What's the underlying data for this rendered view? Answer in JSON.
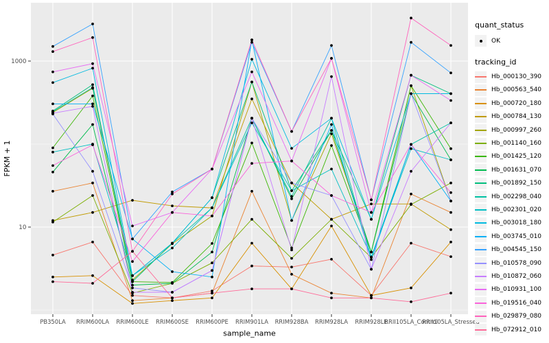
{
  "figure": {
    "background": "#FFFFFF",
    "panel_background": "#EBEBEB",
    "gridline_color": "#FFFFFF",
    "tick_color": "#333333",
    "tick_label_color": "#4D4D4D",
    "text_color": "#000000",
    "point_color": "#000000"
  },
  "legend": {
    "quant_status": {
      "title": "quant_status",
      "items": [
        {
          "label": "OK",
          "marker": "point"
        }
      ]
    },
    "tracking_id": {
      "title": "tracking_id"
    }
  },
  "chart_data": {
    "type": "line",
    "title": "",
    "xlabel": "sample_name",
    "ylabel": "FPKM + 1",
    "y_scale": "log10",
    "y_ticks": [
      10,
      1000
    ],
    "y_tick_labels": [
      "10",
      "1000"
    ],
    "y_minor_gridlines": [
      1,
      100
    ],
    "ylim": [
      0.95,
      4500
    ],
    "grid": true,
    "legend_position": "right",
    "categories": [
      "PB350LA",
      "RRIM600LA",
      "RRIM600LE",
      "RRIM600SE",
      "RRIM600PE",
      "RRIM901LA",
      "RRIM928BA",
      "RRIM928LA",
      "RRIM928LE",
      "RRII105LA_Control",
      "RRII105LA_Stressed"
    ],
    "series": [
      {
        "name": "Hb_000130_390",
        "color": "#F8766D",
        "values": [
          4.6,
          6.6,
          1.5,
          1.4,
          1.7,
          3.4,
          3.3,
          4.1,
          1.5,
          6.4,
          4.4
        ]
      },
      {
        "name": "Hb_000563_540",
        "color": "#EA8331",
        "values": [
          27,
          34,
          1.3,
          1.4,
          1.6,
          27,
          2.7,
          1.6,
          1.4,
          25,
          15
        ]
      },
      {
        "name": "Hb_000720_180",
        "color": "#D89000",
        "values": [
          2.5,
          2.6,
          1.2,
          1.3,
          1.4,
          6.4,
          1.8,
          10.3,
          1.5,
          1.85,
          6.6
        ]
      },
      {
        "name": "Hb_000784_130",
        "color": "#C09B00",
        "values": [
          12,
          15,
          21,
          18,
          17,
          350,
          34,
          12.4,
          19,
          19,
          9.3
        ]
      },
      {
        "name": "Hb_000997_260",
        "color": "#A3A500",
        "values": [
          240,
          470,
          2.3,
          6.3,
          13.6,
          560,
          12,
          133,
          5.0,
          505,
          20.6
        ]
      },
      {
        "name": "Hb_001140_160",
        "color": "#7CAE00",
        "values": [
          11.5,
          24,
          1.6,
          2.1,
          3.7,
          12.4,
          4.2,
          12.4,
          4.3,
          18.7,
          34
        ]
      },
      {
        "name": "Hb_001425_120",
        "color": "#39B600",
        "values": [
          90,
          380,
          2.2,
          2.15,
          6.35,
          103,
          5.6,
          96,
          5.0,
          505,
          88
        ]
      },
      {
        "name": "Hb_001631_070",
        "color": "#00BB4E",
        "values": [
          46,
          172,
          2.0,
          2.1,
          5.0,
          205,
          21.9,
          146,
          5.0,
          405,
          64.5
        ]
      },
      {
        "name": "Hb_001892_150",
        "color": "#00BF7D",
        "values": [
          250,
          520,
          2.2,
          6.4,
          22.6,
          560,
          27.4,
          146,
          12.4,
          675,
          405
        ]
      },
      {
        "name": "Hb_002298_040",
        "color": "#00C1A3",
        "values": [
          245,
          480,
          2.6,
          6.4,
          17.1,
          205,
          23.4,
          205,
          4.35,
          99,
          180
        ]
      },
      {
        "name": "Hb_002301_020",
        "color": "#00BFC4",
        "values": [
          80,
          100,
          2.6,
          5.6,
          17.1,
          180,
          27.4,
          50,
          4.35,
          88,
          64.5
        ]
      },
      {
        "name": "Hb_003018_180",
        "color": "#00BAE0",
        "values": [
          550,
          820,
          2.6,
          6.4,
          22.6,
          1050,
          88.7,
          205,
          12.4,
          405,
          405
        ]
      },
      {
        "name": "Hb_003745_010",
        "color": "#00B0F6",
        "values": [
          305,
          305,
          7.2,
          2.9,
          2.5,
          1800,
          12,
          172,
          4.05,
          99,
          20.6
        ]
      },
      {
        "name": "Hb_004545_150",
        "color": "#35A2FF",
        "values": [
          1500,
          2800,
          7.2,
          26.5,
          50,
          1680,
          142,
          1540,
          21.3,
          1680,
          720
        ]
      },
      {
        "name": "Hb_010578_090",
        "color": "#9590FF",
        "values": [
          230,
          47,
          1.85,
          1.64,
          3.0,
          205,
          34,
          24,
          3.1,
          405,
          20.6
        ]
      },
      {
        "name": "Hb_010872_060",
        "color": "#C77CFF",
        "values": [
          235,
          285,
          1.64,
          1.64,
          3.0,
          205,
          5.3,
          650,
          3.1,
          47,
          180
        ]
      },
      {
        "name": "Hb_010931_100",
        "color": "#E76BF3",
        "values": [
          740,
          930,
          10.3,
          15,
          50,
          740,
          62.5,
          1080,
          15,
          675,
          335
        ]
      },
      {
        "name": "Hb_019516_040",
        "color": "#FA62DB",
        "values": [
          55,
          98,
          3.85,
          15,
          13.6,
          58.5,
          62.5,
          24,
          15,
          99,
          26
        ]
      },
      {
        "name": "Hb_029879_080",
        "color": "#FF62BC",
        "values": [
          1300,
          1920,
          5.1,
          25,
          50,
          1800,
          142,
          1080,
          21.3,
          3300,
          1540
        ]
      },
      {
        "name": "Hb_072912_010",
        "color": "#FF6A98",
        "values": [
          2.2,
          2.1,
          5.1,
          1.4,
          1.6,
          1.8,
          1.8,
          1.4,
          1.4,
          1.26,
          1.6
        ]
      }
    ]
  }
}
